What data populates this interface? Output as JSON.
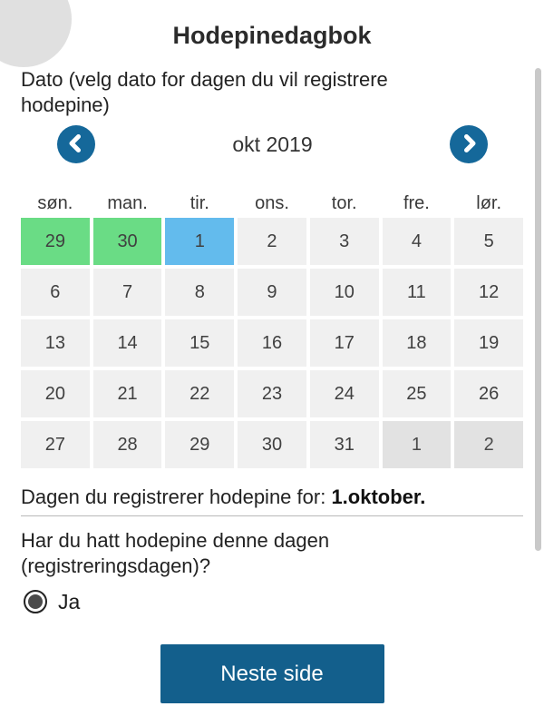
{
  "header": {
    "title": "Hodepinedagbok",
    "back_icon": "arrow-left"
  },
  "date_section": {
    "label": "Dato (velg dato for dagen du vil registrere hodepine)",
    "calendar": {
      "month_label": "okt 2019",
      "prev_icon": "chevron-left",
      "next_icon": "chevron-right",
      "weekdays": [
        "søn.",
        "man.",
        "tir.",
        "ons.",
        "tor.",
        "fre.",
        "lør."
      ],
      "days": [
        {
          "label": "29",
          "state": "green"
        },
        {
          "label": "30",
          "state": "green"
        },
        {
          "label": "1",
          "state": "selected"
        },
        {
          "label": "2",
          "state": "normal"
        },
        {
          "label": "3",
          "state": "normal"
        },
        {
          "label": "4",
          "state": "normal"
        },
        {
          "label": "5",
          "state": "normal"
        },
        {
          "label": "6",
          "state": "normal"
        },
        {
          "label": "7",
          "state": "normal"
        },
        {
          "label": "8",
          "state": "normal"
        },
        {
          "label": "9",
          "state": "normal"
        },
        {
          "label": "10",
          "state": "normal"
        },
        {
          "label": "11",
          "state": "normal"
        },
        {
          "label": "12",
          "state": "normal"
        },
        {
          "label": "13",
          "state": "normal"
        },
        {
          "label": "14",
          "state": "normal"
        },
        {
          "label": "15",
          "state": "normal"
        },
        {
          "label": "16",
          "state": "normal"
        },
        {
          "label": "17",
          "state": "normal"
        },
        {
          "label": "18",
          "state": "normal"
        },
        {
          "label": "19",
          "state": "normal"
        },
        {
          "label": "20",
          "state": "normal"
        },
        {
          "label": "21",
          "state": "normal"
        },
        {
          "label": "22",
          "state": "normal"
        },
        {
          "label": "23",
          "state": "normal"
        },
        {
          "label": "24",
          "state": "normal"
        },
        {
          "label": "25",
          "state": "normal"
        },
        {
          "label": "26",
          "state": "normal"
        },
        {
          "label": "27",
          "state": "normal"
        },
        {
          "label": "28",
          "state": "normal"
        },
        {
          "label": "29",
          "state": "normal"
        },
        {
          "label": "30",
          "state": "normal"
        },
        {
          "label": "31",
          "state": "normal"
        },
        {
          "label": "1",
          "state": "next"
        },
        {
          "label": "2",
          "state": "next"
        }
      ]
    }
  },
  "summary": {
    "prefix": "Dagen du registrerer hodepine for: ",
    "value": "1.oktober."
  },
  "question": {
    "text": "Har du hatt hodepine denne dagen (registreringsdagen)?",
    "options": [
      {
        "label": "Ja",
        "selected": true
      }
    ]
  },
  "actions": {
    "next_button": "Neste side"
  },
  "colors": {
    "accent": "#15689a",
    "button": "#135f8c",
    "registered": "#6adc85",
    "selected": "#63bbed",
    "cell": "#f0f0f0",
    "adjacent": "#e2e2e2"
  }
}
